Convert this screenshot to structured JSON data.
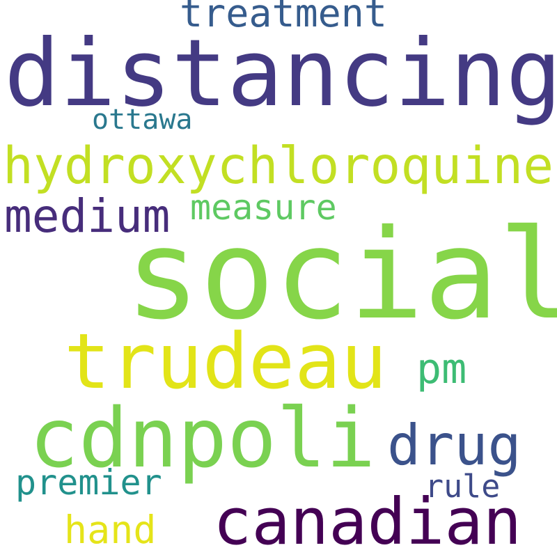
{
  "words": [
    {
      "id": "distancing",
      "text": "distancing",
      "color": "#443a83"
    },
    {
      "id": "treatment",
      "text": "treatment",
      "color": "#365c8d"
    },
    {
      "id": "ottawa",
      "text": "ottawa",
      "color": "#2a788e"
    },
    {
      "id": "hydroxychloroquine",
      "text": "hydroxychloroquine",
      "color": "#c2df23"
    },
    {
      "id": "medium",
      "text": "medium",
      "color": "#472d7b"
    },
    {
      "id": "measure",
      "text": "measure",
      "color": "#5ec962"
    },
    {
      "id": "social",
      "text": "social",
      "color": "#86d549"
    },
    {
      "id": "trudeau",
      "text": "trudeau",
      "color": "#e2e418"
    },
    {
      "id": "pm",
      "text": "pm",
      "color": "#3dbc74"
    },
    {
      "id": "cdnpoli",
      "text": "cdnpoli",
      "color": "#7ad151"
    },
    {
      "id": "drug",
      "text": "drug",
      "color": "#3b528b"
    },
    {
      "id": "premier",
      "text": "premier",
      "color": "#21918c"
    },
    {
      "id": "rule",
      "text": "rule",
      "color": "#3e4a89"
    },
    {
      "id": "canadian",
      "text": "canadian",
      "color": "#440154"
    },
    {
      "id": "hand",
      "text": "hand",
      "color": "#e5e419"
    }
  ]
}
